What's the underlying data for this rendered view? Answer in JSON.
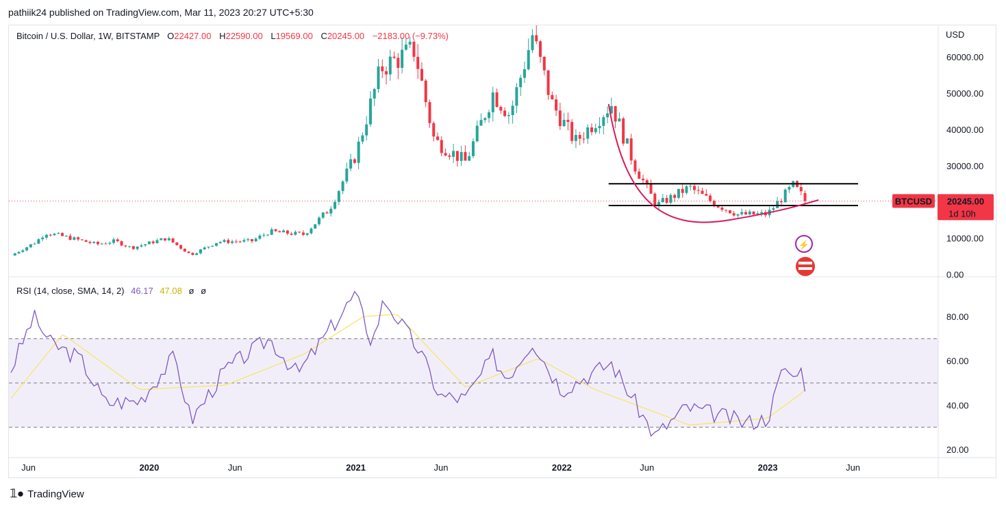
{
  "publish_info": "pathiik24 published on TradingView.com, Mar 11, 2023 20:27 UTC+5:30",
  "symbol_line": {
    "title": "Bitcoin / U.S. Dollar, 1W, BITSTAMP",
    "o_label": "O",
    "o": "22427.00",
    "h_label": "H",
    "h": "22590.00",
    "l_label": "L",
    "l": "19569.00",
    "c_label": "C",
    "c": "20245.00",
    "change": "−2183.00 (−9.73%)"
  },
  "rsi_line": {
    "title": "RSI (14, close, SMA, 14, 2)",
    "rsi": "46.17",
    "sma": "47.08",
    "na1": "ø",
    "na2": "ø"
  },
  "price_axis": {
    "currency": "USD",
    "ticks": [
      "60000.00",
      "50000.00",
      "40000.00",
      "30000.00",
      "10000.00",
      "0.00"
    ]
  },
  "rsi_axis": {
    "ticks": [
      "80.00",
      "60.00",
      "40.00",
      "20.00"
    ]
  },
  "time_axis": {
    "labels": [
      {
        "text": "Jun",
        "bold": false
      },
      {
        "text": "2020",
        "bold": true
      },
      {
        "text": "Jun",
        "bold": false
      },
      {
        "text": "2021",
        "bold": true
      },
      {
        "text": "Jun",
        "bold": false
      },
      {
        "text": "2022",
        "bold": true
      },
      {
        "text": "Jun",
        "bold": false
      },
      {
        "text": "2023",
        "bold": true
      },
      {
        "text": "Jun",
        "bold": false
      }
    ]
  },
  "price_tag": {
    "symbol": "BTCUSD",
    "price": "20245.00",
    "countdown": "1d 10h",
    "color": "#f23645"
  },
  "colors": {
    "up": "#26a69a",
    "down": "#f23645",
    "rsi": "#7e57c2",
    "rsi_sma": "#f5e66b",
    "band": "#7e57c2",
    "curve": "#d6195d"
  },
  "footer": {
    "brand": "TradingView"
  },
  "chart_data": [
    {
      "type": "candlestick",
      "title": "Bitcoin / U.S. Dollar, 1W, BITSTAMP",
      "ylabel": "USD",
      "ylim": [
        0,
        70000
      ],
      "x_range": [
        "2019-05",
        "2023-03"
      ],
      "close_path": [
        {
          "x": "2019-05",
          "y": 5200
        },
        {
          "x": "2019-06-15",
          "y": 9000
        },
        {
          "x": "2019-07-01",
          "y": 11500
        },
        {
          "x": "2019-08-01",
          "y": 10500
        },
        {
          "x": "2019-10-01",
          "y": 8300
        },
        {
          "x": "2019-11-01",
          "y": 9200
        },
        {
          "x": "2019-12-01",
          "y": 7300
        },
        {
          "x": "2020-02-01",
          "y": 10000
        },
        {
          "x": "2020-03-15",
          "y": 5400
        },
        {
          "x": "2020-05-01",
          "y": 9000
        },
        {
          "x": "2020-07-01",
          "y": 9200
        },
        {
          "x": "2020-08-01",
          "y": 11800
        },
        {
          "x": "2020-10-01",
          "y": 11000
        },
        {
          "x": "2020-11-15",
          "y": 18000
        },
        {
          "x": "2021-01-01",
          "y": 33000
        },
        {
          "x": "2021-02-15",
          "y": 57000
        },
        {
          "x": "2021-04-15",
          "y": 62000
        },
        {
          "x": "2021-05-20",
          "y": 37000
        },
        {
          "x": "2021-07-15",
          "y": 31000
        },
        {
          "x": "2021-09-01",
          "y": 50000
        },
        {
          "x": "2021-10-01",
          "y": 44000
        },
        {
          "x": "2021-11-10",
          "y": 66000
        },
        {
          "x": "2021-12-15",
          "y": 47000
        },
        {
          "x": "2022-01-25",
          "y": 36500
        },
        {
          "x": "2022-03-30",
          "y": 47000
        },
        {
          "x": "2022-05-10",
          "y": 30000
        },
        {
          "x": "2022-06-18",
          "y": 19000
        },
        {
          "x": "2022-08-15",
          "y": 24000
        },
        {
          "x": "2022-10-01",
          "y": 19300
        },
        {
          "x": "2022-11-10",
          "y": 16500
        },
        {
          "x": "2022-12-31",
          "y": 16600
        },
        {
          "x": "2023-02-15",
          "y": 24500
        },
        {
          "x": "2023-03-11",
          "y": 20245
        }
      ],
      "last": {
        "open": 22427.0,
        "high": 22590.0,
        "low": 19569.0,
        "close": 20245.0,
        "change": -2183.0,
        "change_pct": -9.73
      },
      "annotations": {
        "horizontal_lines": [
          25000,
          19000
        ],
        "rounding_bottom_curve": [
          {
            "x": "2022-03-25",
            "y": 47000
          },
          {
            "x": "2022-06-15",
            "y": 20000
          },
          {
            "x": "2022-10-25",
            "y": 15000
          },
          {
            "x": "2023-04-01",
            "y": 20500
          }
        ]
      }
    },
    {
      "type": "line",
      "title": "RSI (14, close, SMA, 14, 2)",
      "ylim": [
        15,
        95
      ],
      "bands": [
        30,
        50,
        70
      ],
      "series": [
        {
          "name": "RSI",
          "values": [
            {
              "x": "2019-05",
              "y": 56
            },
            {
              "x": "2019-06-10",
              "y": 80
            },
            {
              "x": "2019-07-10",
              "y": 68
            },
            {
              "x": "2019-09-01",
              "y": 61
            },
            {
              "x": "2019-10-15",
              "y": 41
            },
            {
              "x": "2019-12-15",
              "y": 42
            },
            {
              "x": "2020-02-15",
              "y": 62
            },
            {
              "x": "2020-03-15",
              "y": 33
            },
            {
              "x": "2020-05-15",
              "y": 56
            },
            {
              "x": "2020-08-01",
              "y": 70
            },
            {
              "x": "2020-09-20",
              "y": 54
            },
            {
              "x": "2020-12-31",
              "y": 90
            },
            {
              "x": "2021-01-30",
              "y": 68
            },
            {
              "x": "2021-02-20",
              "y": 88
            },
            {
              "x": "2021-04-25",
              "y": 64
            },
            {
              "x": "2021-05-30",
              "y": 44
            },
            {
              "x": "2021-07-15",
              "y": 43
            },
            {
              "x": "2021-09-01",
              "y": 62
            },
            {
              "x": "2021-09-25",
              "y": 52
            },
            {
              "x": "2021-11-10",
              "y": 69
            },
            {
              "x": "2021-12-31",
              "y": 47
            },
            {
              "x": "2022-03-30",
              "y": 59
            },
            {
              "x": "2022-06-15",
              "y": 26
            },
            {
              "x": "2022-08-10",
              "y": 39
            },
            {
              "x": "2022-10-15",
              "y": 35
            },
            {
              "x": "2022-11-20",
              "y": 32
            },
            {
              "x": "2023-01-01",
              "y": 34
            },
            {
              "x": "2023-01-30",
              "y": 58
            },
            {
              "x": "2023-02-15",
              "y": 52
            },
            {
              "x": "2023-02-25",
              "y": 59
            },
            {
              "x": "2023-03-11",
              "y": 46.17
            }
          ]
        },
        {
          "name": "SMA",
          "values": [
            {
              "x": "2019-05",
              "y": 43
            },
            {
              "x": "2019-08-01",
              "y": 72
            },
            {
              "x": "2019-12-15",
              "y": 47
            },
            {
              "x": "2020-05-15",
              "y": 49
            },
            {
              "x": "2020-10-01",
              "y": 63
            },
            {
              "x": "2021-01-15",
              "y": 80
            },
            {
              "x": "2021-03-15",
              "y": 81
            },
            {
              "x": "2021-07-15",
              "y": 48
            },
            {
              "x": "2021-11-20",
              "y": 61
            },
            {
              "x": "2022-03-01",
              "y": 47
            },
            {
              "x": "2022-08-15",
              "y": 31
            },
            {
              "x": "2022-12-31",
              "y": 34
            },
            {
              "x": "2023-03-11",
              "y": 47.08
            }
          ]
        }
      ]
    }
  ]
}
